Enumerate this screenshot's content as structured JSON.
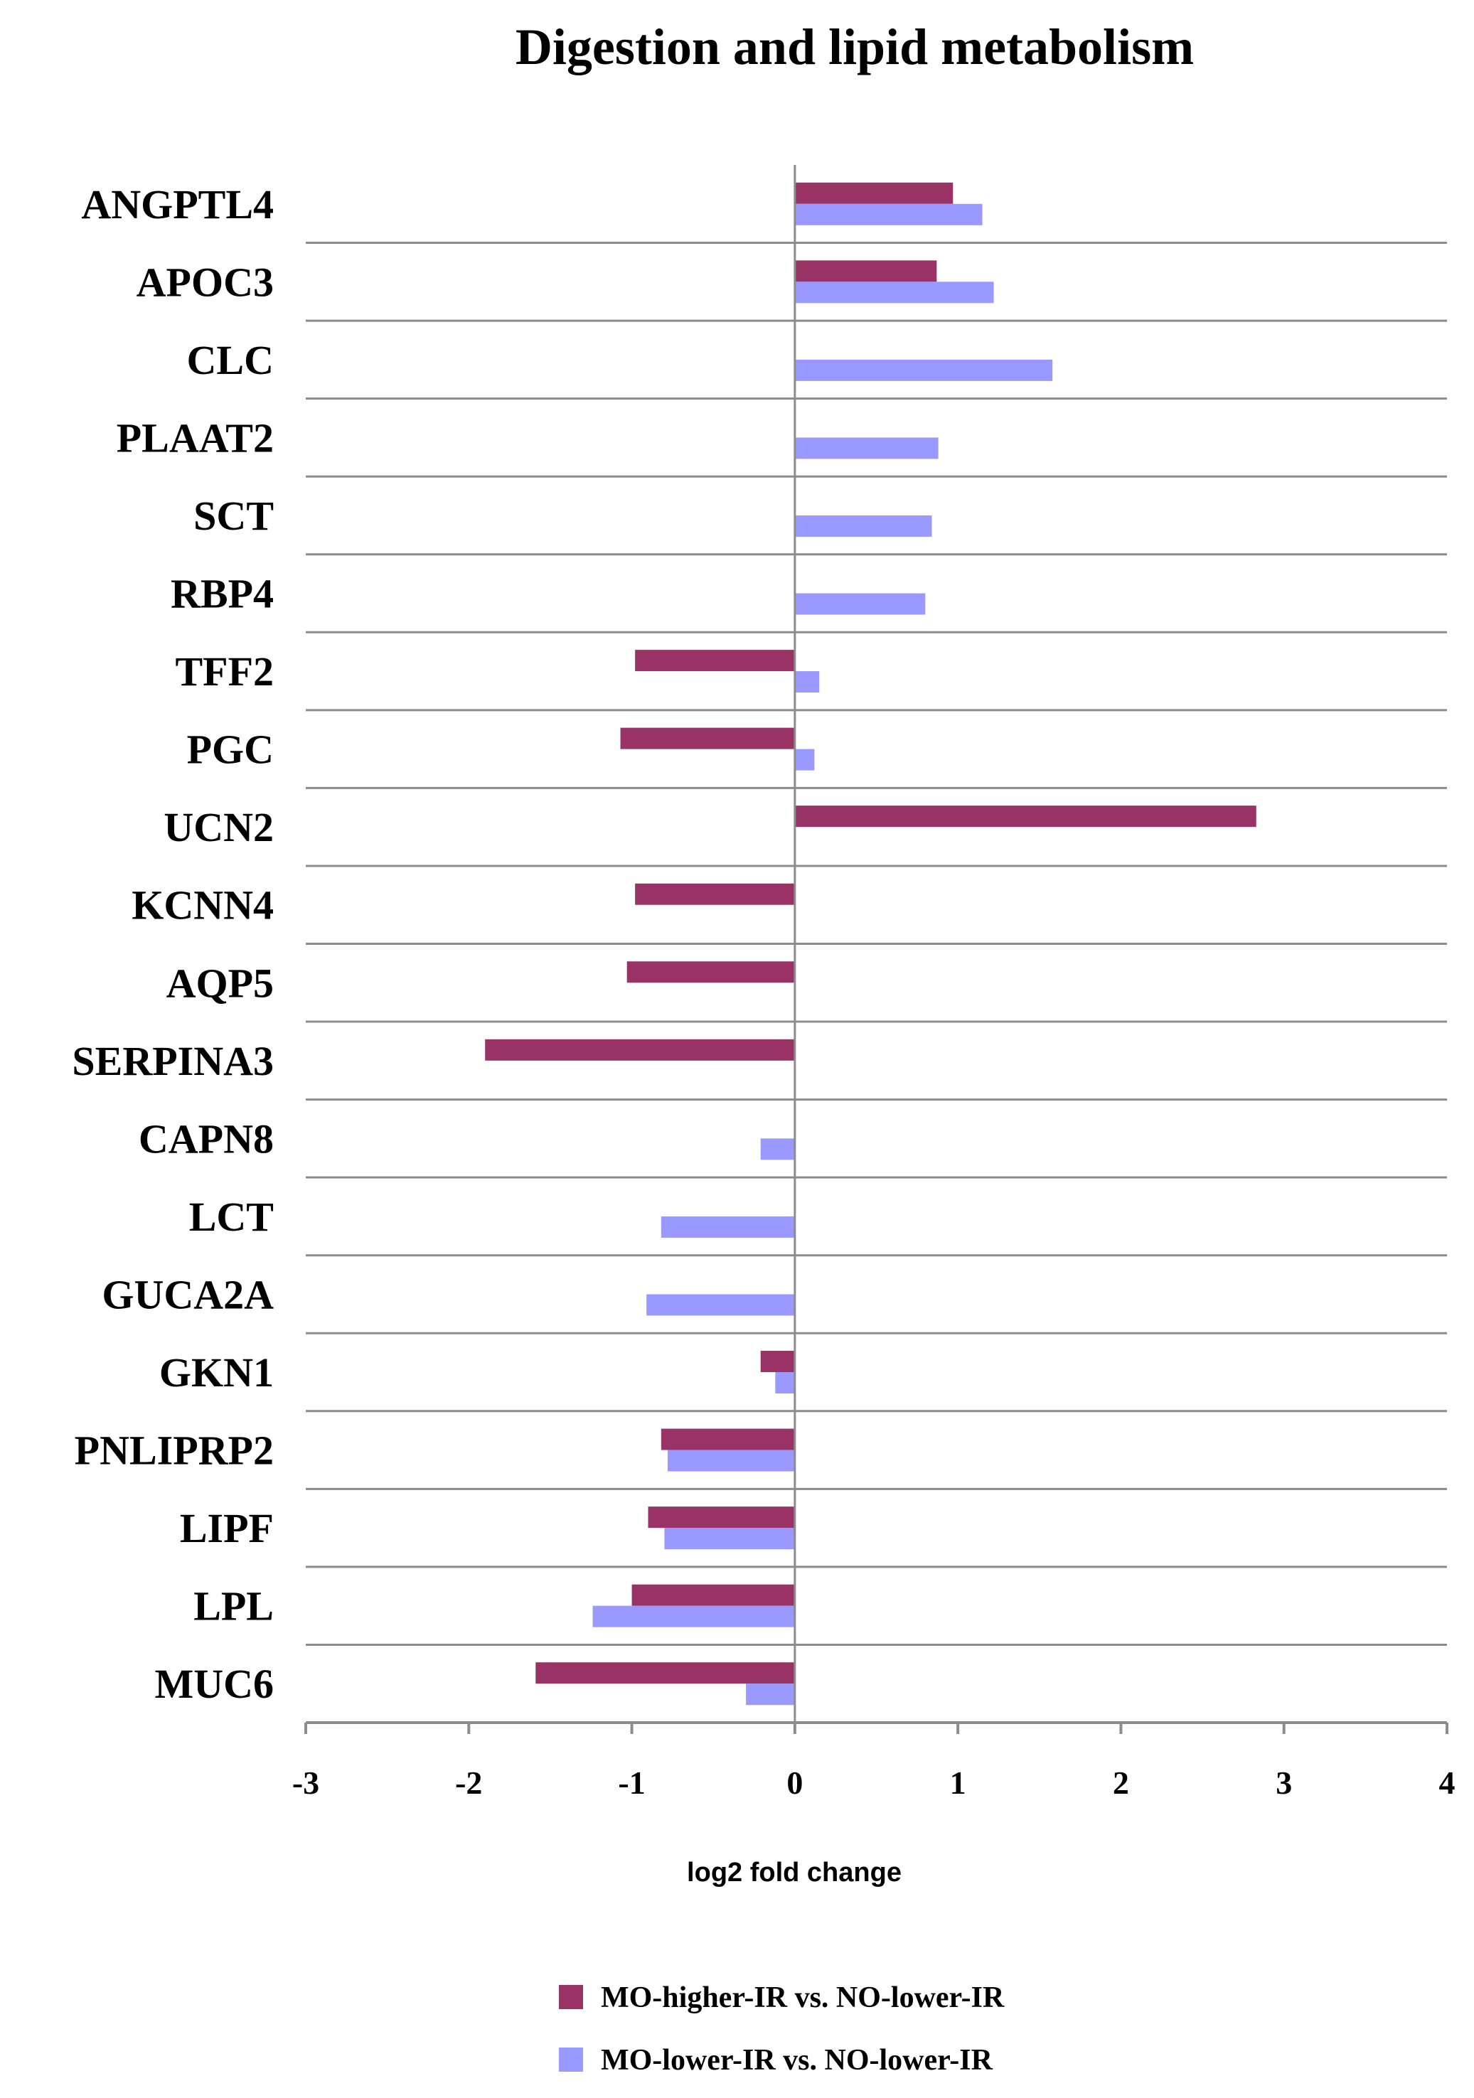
{
  "chart_data": {
    "type": "bar",
    "orientation": "horizontal",
    "title": "Digestion and lipid metabolism",
    "xlabel": "log2 fold change",
    "ylabel": "",
    "xlim": [
      -3,
      4
    ],
    "xticks": [
      "-3",
      "-2",
      "-1",
      "0",
      "1",
      "2",
      "3",
      "4"
    ],
    "legend_position": "bottom",
    "grid": "horizontal separators between categories",
    "categories": [
      "ANGPTL4",
      "APOC3",
      "CLC",
      "PLAAT2",
      "SCT",
      "RBP4",
      "TFF2",
      "PGC",
      "UCN2",
      "KCNN4",
      "AQP5",
      "SERPINA3",
      "CAPN8",
      "LCT",
      "GUCA2A",
      "GKN1",
      "PNLIPRP2",
      "LIPF",
      "LPL",
      "MUC6"
    ],
    "series": [
      {
        "name": "MO-higher-IR vs. NO-lower-IR",
        "color": "#993366",
        "values": [
          0.97,
          0.87,
          null,
          null,
          null,
          null,
          -0.98,
          -1.07,
          2.83,
          -0.98,
          -1.03,
          -1.9,
          null,
          null,
          null,
          -0.21,
          -0.82,
          -0.9,
          -1.0,
          -1.59
        ]
      },
      {
        "name": "MO-lower-IR vs. NO-lower-IR",
        "color": "#9999ff",
        "values": [
          1.15,
          1.22,
          1.58,
          0.88,
          0.84,
          0.8,
          0.15,
          0.12,
          null,
          null,
          null,
          null,
          -0.21,
          -0.82,
          -0.91,
          -0.12,
          -0.78,
          -0.8,
          -1.24,
          -0.3
        ]
      }
    ]
  }
}
